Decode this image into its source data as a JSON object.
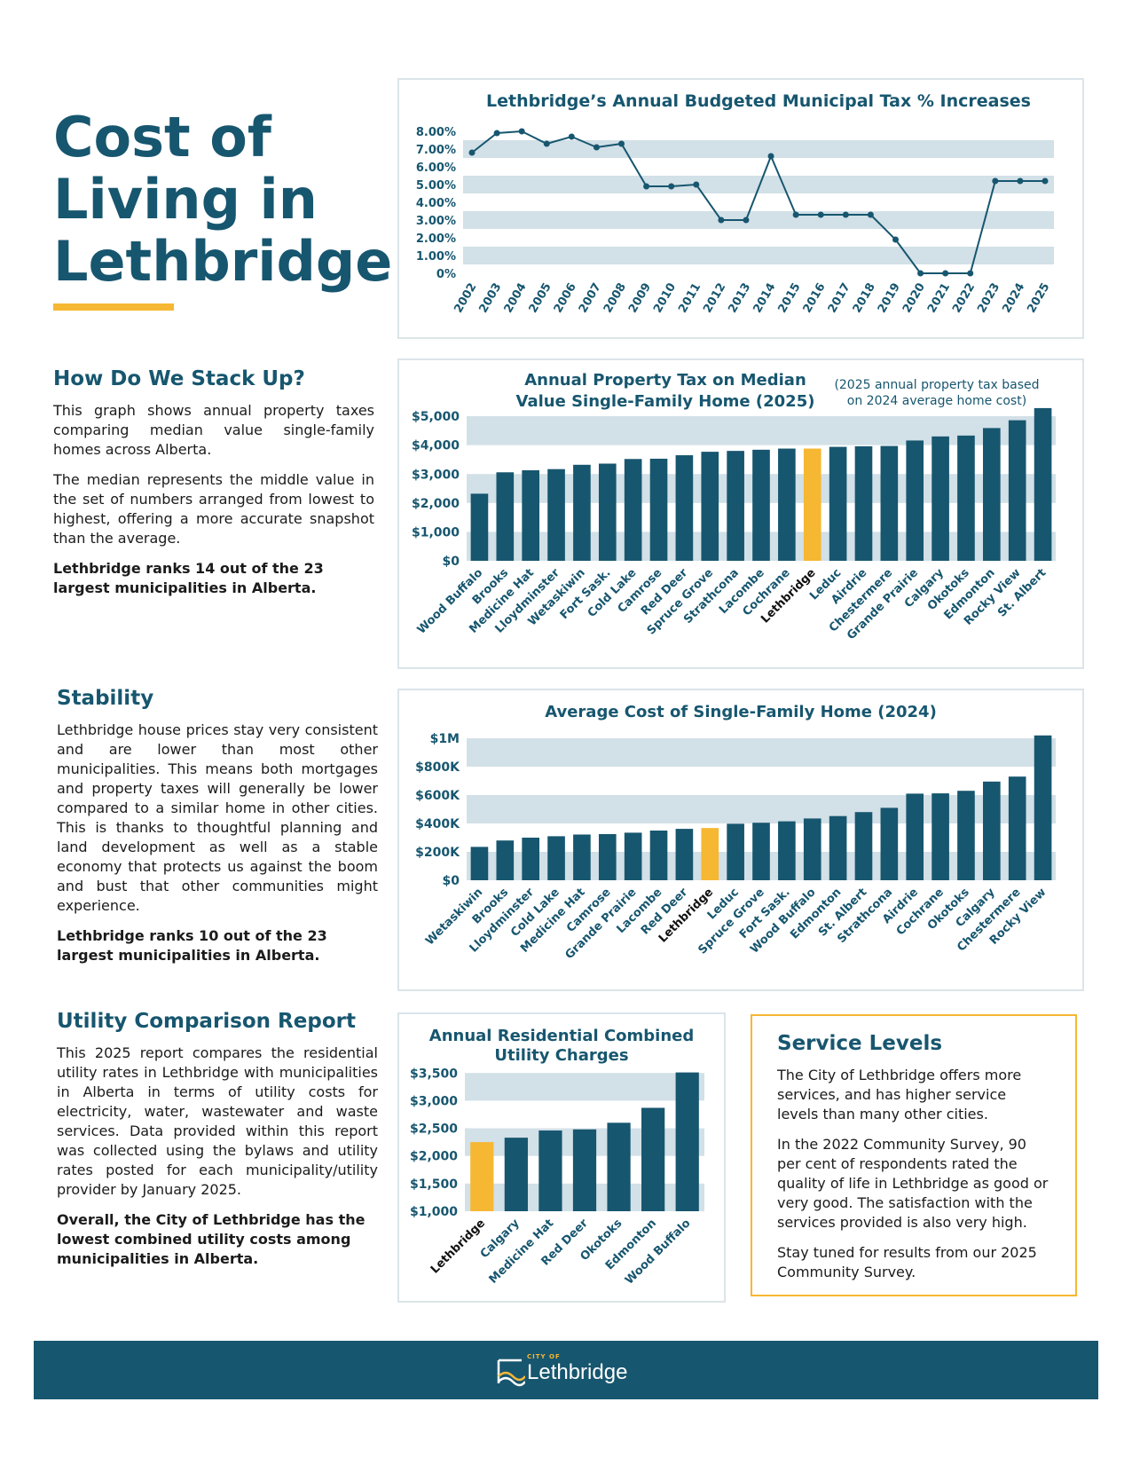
{
  "page": {
    "title_lines": [
      "Cost of",
      "Living in",
      "Lethbridge"
    ],
    "accent_color": "#f6b733",
    "brand_color": "#17566f"
  },
  "sections": {
    "stack_up": {
      "heading": "How Do We Stack Up?",
      "p1": "This graph shows annual property taxes comparing median value single-family homes across Alberta.",
      "p2": "The median represents the middle value in the set of numbers arranged from lowest to highest, offering a more accurate snapshot than the average.",
      "p3": "Lethbridge ranks 14 out of the 23 largest municipalities in Alberta."
    },
    "stability": {
      "heading": "Stability",
      "p1": "Lethbridge house prices stay very consistent and are lower than most other municipalities.  This means both mortgages and property taxes will generally be lower compared to a similar home in other cities. This is thanks to thoughtful planning and land development as well as a stable economy that protects us against the boom and bust that other communities might experience.",
      "p2": "Lethbridge ranks 10 out of the 23 largest municipalities in Alberta."
    },
    "utility": {
      "heading": "Utility Comparison Report",
      "p1": "This 2025 report compares the residential utility rates in Lethbridge with municipalities in Alberta in terms of utility costs for electricity, water, wastewater and waste services. Data provided within this report was collected using the bylaws and utility rates posted for each municipality/utility provider by January 2025.",
      "p2": "Overall, the City of Lethbridge has the lowest combined utility costs among municipalities in Alberta."
    },
    "service": {
      "heading": "Service Levels",
      "p1": "The City of Lethbridge offers more services, and has higher service levels than many other cities.",
      "p2": "In the 2022 Community Survey, 90 per cent of respondents rated the quality of life in Lethbridge as good or very good. The satisfaction with the services provided is also very high.",
      "p3": "Stay tuned for results from our 2025 Community Survey."
    }
  },
  "footer": {
    "logo_small": "CITY OF",
    "logo_word": "Lethbridge"
  },
  "chart_data": [
    {
      "id": "tax_increase",
      "type": "line",
      "title": "Lethbridge’s Annual Budgeted Municipal Tax % Increases",
      "x": [
        "2002",
        "2003",
        "2004",
        "2005",
        "2006",
        "2007",
        "2008",
        "2009",
        "2010",
        "2011",
        "2012",
        "2013",
        "2014",
        "2015",
        "2016",
        "2017",
        "2018",
        "2019",
        "2020",
        "2021",
        "2022",
        "2023",
        "2024",
        "2025"
      ],
      "values": [
        6.8,
        7.9,
        8.0,
        7.3,
        7.7,
        7.1,
        7.3,
        4.9,
        4.9,
        5.0,
        3.0,
        3.0,
        6.6,
        3.3,
        3.3,
        3.3,
        3.3,
        1.9,
        0,
        0,
        0,
        5.2,
        5.2,
        5.2
      ],
      "yticks": [
        "0%",
        "1.00%",
        "2.00%",
        "3.00%",
        "4.00%",
        "5.00%",
        "6.00%",
        "7.00%",
        "8.00%"
      ],
      "ylim": [
        0,
        8.5
      ],
      "color": "#17566f"
    },
    {
      "id": "property_tax",
      "type": "bar",
      "title_lines": [
        "Annual Property Tax on Median",
        "Value Single-Family Home (2025)"
      ],
      "note_lines": [
        "(2025 annual property tax based",
        "on 2024 average home cost)"
      ],
      "categories": [
        "Wood Buffalo",
        "Brooks",
        "Medicine Hat",
        "Lloydminster",
        "Wetaskiwin",
        "Fort Sask.",
        "Cold Lake",
        "Camrose",
        "Red Deer",
        "Spruce Grove",
        "Strathcona",
        "Lacombe",
        "Cochrane",
        "Lethbridge",
        "Leduc",
        "Airdrie",
        "Chestermere",
        "Grande Prairie",
        "Calgary",
        "Okotoks",
        "Edmonton",
        "Rocky View",
        "St. Albert"
      ],
      "values": [
        2320,
        3060,
        3130,
        3170,
        3320,
        3360,
        3520,
        3530,
        3650,
        3770,
        3800,
        3840,
        3880,
        3880,
        3940,
        3960,
        3970,
        4160,
        4300,
        4330,
        4590,
        4860,
        5280
      ],
      "highlight": "Lethbridge",
      "yticks": [
        "$0",
        "$1,000",
        "$2,000",
        "$3,000",
        "$4,000",
        "$5,000"
      ],
      "ylim": [
        0,
        5400
      ]
    },
    {
      "id": "home_cost",
      "type": "bar",
      "title": "Average Cost of Single-Family Home (2024)",
      "categories": [
        "Wetaskiwin",
        "Brooks",
        "Lloydminster",
        "Cold Lake",
        "Medicine Hat",
        "Camrose",
        "Grande Prairie",
        "Lacombe",
        "Red Deer",
        "Lethbridge",
        "Leduc",
        "Spruce Grove",
        "Fort Sask.",
        "Wood Buffalo",
        "Edmonton",
        "St. Albert",
        "Strathcona",
        "Airdrie",
        "Cochrane",
        "Okotoks",
        "Calgary",
        "Chestermere",
        "Rocky View"
      ],
      "values": [
        235000,
        280000,
        300000,
        310000,
        322000,
        325000,
        335000,
        350000,
        362000,
        368000,
        398000,
        405000,
        415000,
        435000,
        452000,
        480000,
        510000,
        610000,
        612000,
        630000,
        695000,
        730000,
        1020000
      ],
      "highlight": "Lethbridge",
      "yticks": [
        "$0",
        "$200K",
        "$400K",
        "$600K",
        "$800K",
        "$1M"
      ],
      "ylim": [
        0,
        1050000
      ]
    },
    {
      "id": "utility",
      "type": "bar",
      "title_lines": [
        "Annual Residential Combined",
        "Utility Charges"
      ],
      "categories": [
        "Lethbridge",
        "Calgary",
        "Medicine Hat",
        "Red Deer",
        "Okotoks",
        "Edmonton",
        "Wood Buffalo"
      ],
      "values": [
        2250,
        2330,
        2460,
        2480,
        2600,
        2870,
        3510
      ],
      "highlight": "Lethbridge",
      "yticks": [
        "$1,000",
        "$1,500",
        "$2,000",
        "$2,500",
        "$3,000",
        "$3,500"
      ],
      "ylim": [
        1000,
        3600
      ]
    }
  ]
}
